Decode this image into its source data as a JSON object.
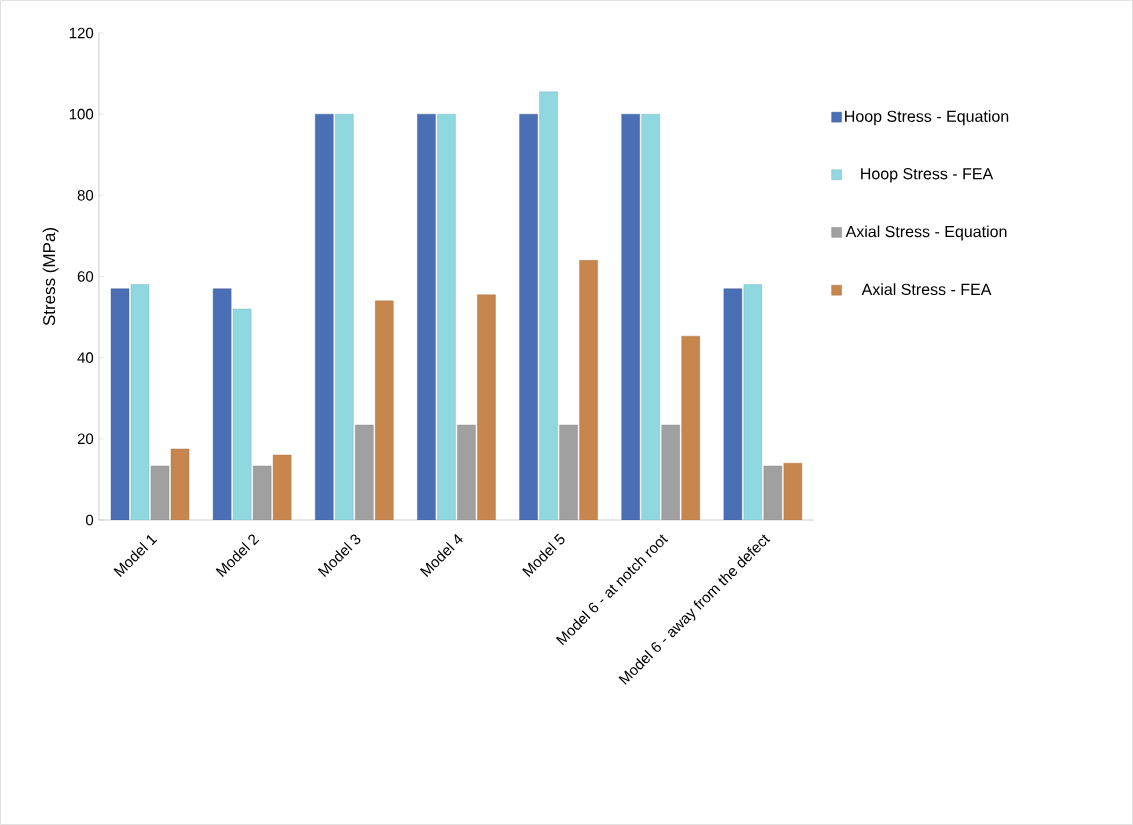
{
  "chart_data": {
    "type": "bar",
    "ylabel": "Stress  (MPa)",
    "categories": [
      "Model 1",
      "Model 2",
      "Model 3",
      "Model 4",
      "Model 5",
      "Model 6 - at notch root",
      "Model 6 - away from the defect"
    ],
    "series": [
      {
        "name": "Hoop Stress - Equation",
        "color": "#4a6fb5",
        "values": [
          57,
          57,
          100,
          100,
          100,
          100,
          57
        ]
      },
      {
        "name": "Hoop Stress - FEA",
        "color": "#8fd8e0",
        "values": [
          58,
          52,
          100,
          100,
          105.5,
          100,
          58
        ]
      },
      {
        "name": "Axial Stress - Equation",
        "color": "#a0a0a0",
        "values": [
          13.3,
          13.3,
          23.4,
          23.4,
          23.4,
          23.4,
          13.3
        ]
      },
      {
        "name": "Axial Stress - FEA",
        "color": "#c8864f",
        "values": [
          17.5,
          16,
          54,
          55.5,
          64,
          45.3,
          14
        ]
      }
    ],
    "ylim": [
      0,
      120
    ],
    "yticks": [
      0,
      20,
      40,
      60,
      80,
      100,
      120
    ],
    "grid": false,
    "legend": "right"
  }
}
